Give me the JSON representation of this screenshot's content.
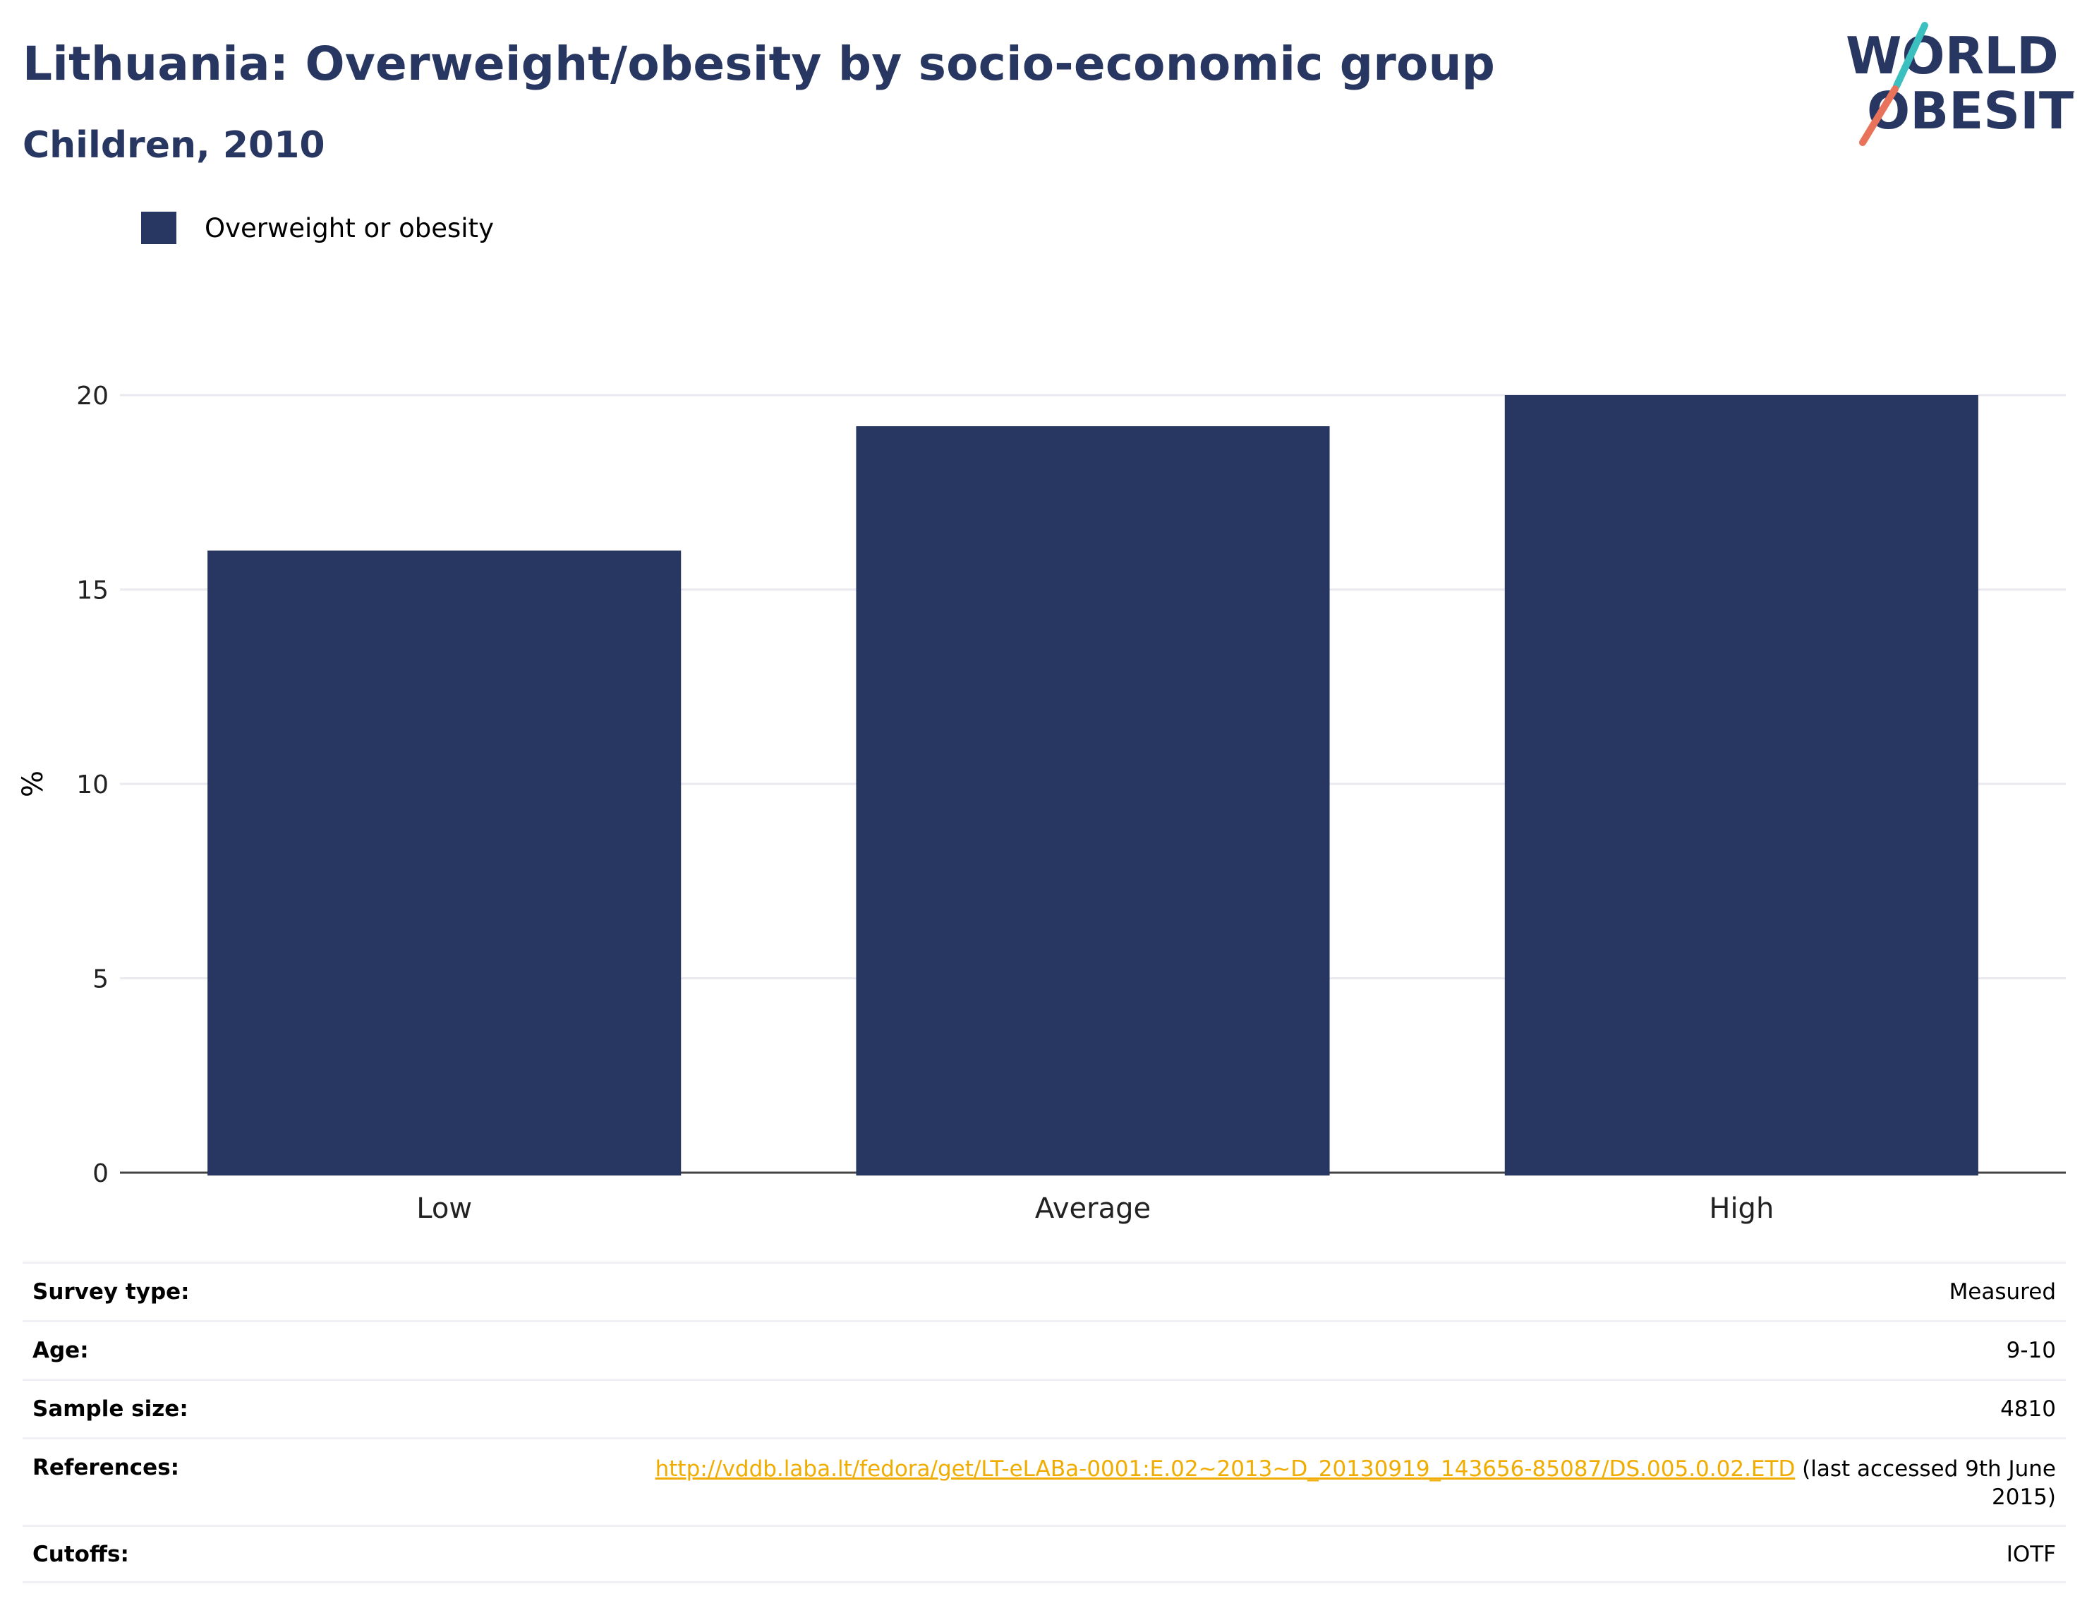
{
  "header": {
    "title": "Lithuania: Overweight/obesity by socio-economic group",
    "subtitle": "Children, 2010"
  },
  "logo": {
    "line1": "WORLD",
    "line2": "OBESITY",
    "accent_colors": [
      "#3bbfbf",
      "#e8735a"
    ]
  },
  "legend": {
    "items": [
      {
        "label": "Overweight or obesity",
        "color": "#283662"
      }
    ]
  },
  "chart_data": {
    "type": "bar",
    "categories": [
      "Low",
      "Average",
      "High"
    ],
    "series": [
      {
        "name": "Overweight or obesity",
        "values": [
          16.0,
          19.2,
          20.0
        ],
        "color": "#283662"
      }
    ],
    "title": "Lithuania: Overweight/obesity by socio-economic group",
    "subtitle": "Children, 2010",
    "xlabel": "",
    "ylabel": "%",
    "ylim": [
      0,
      20
    ],
    "yticks": [
      0,
      5,
      10,
      15,
      20
    ],
    "grid": true,
    "legend_position": "top-left"
  },
  "info_table": {
    "rows": [
      {
        "label": "Survey type:",
        "value": "Measured"
      },
      {
        "label": "Age:",
        "value": "9-10"
      },
      {
        "label": "Sample size:",
        "value": "4810"
      },
      {
        "label": "References:",
        "link": "http://vddb.laba.lt/fedora/get/LT-eLABa-0001:E.02~2013~D_20130919_143656-85087/DS.005.0.02.ETD",
        "value_suffix": " (last accessed 9th June",
        "value_line2": "2015)"
      },
      {
        "label": "Cutoffs:",
        "value": "IOTF"
      }
    ]
  }
}
